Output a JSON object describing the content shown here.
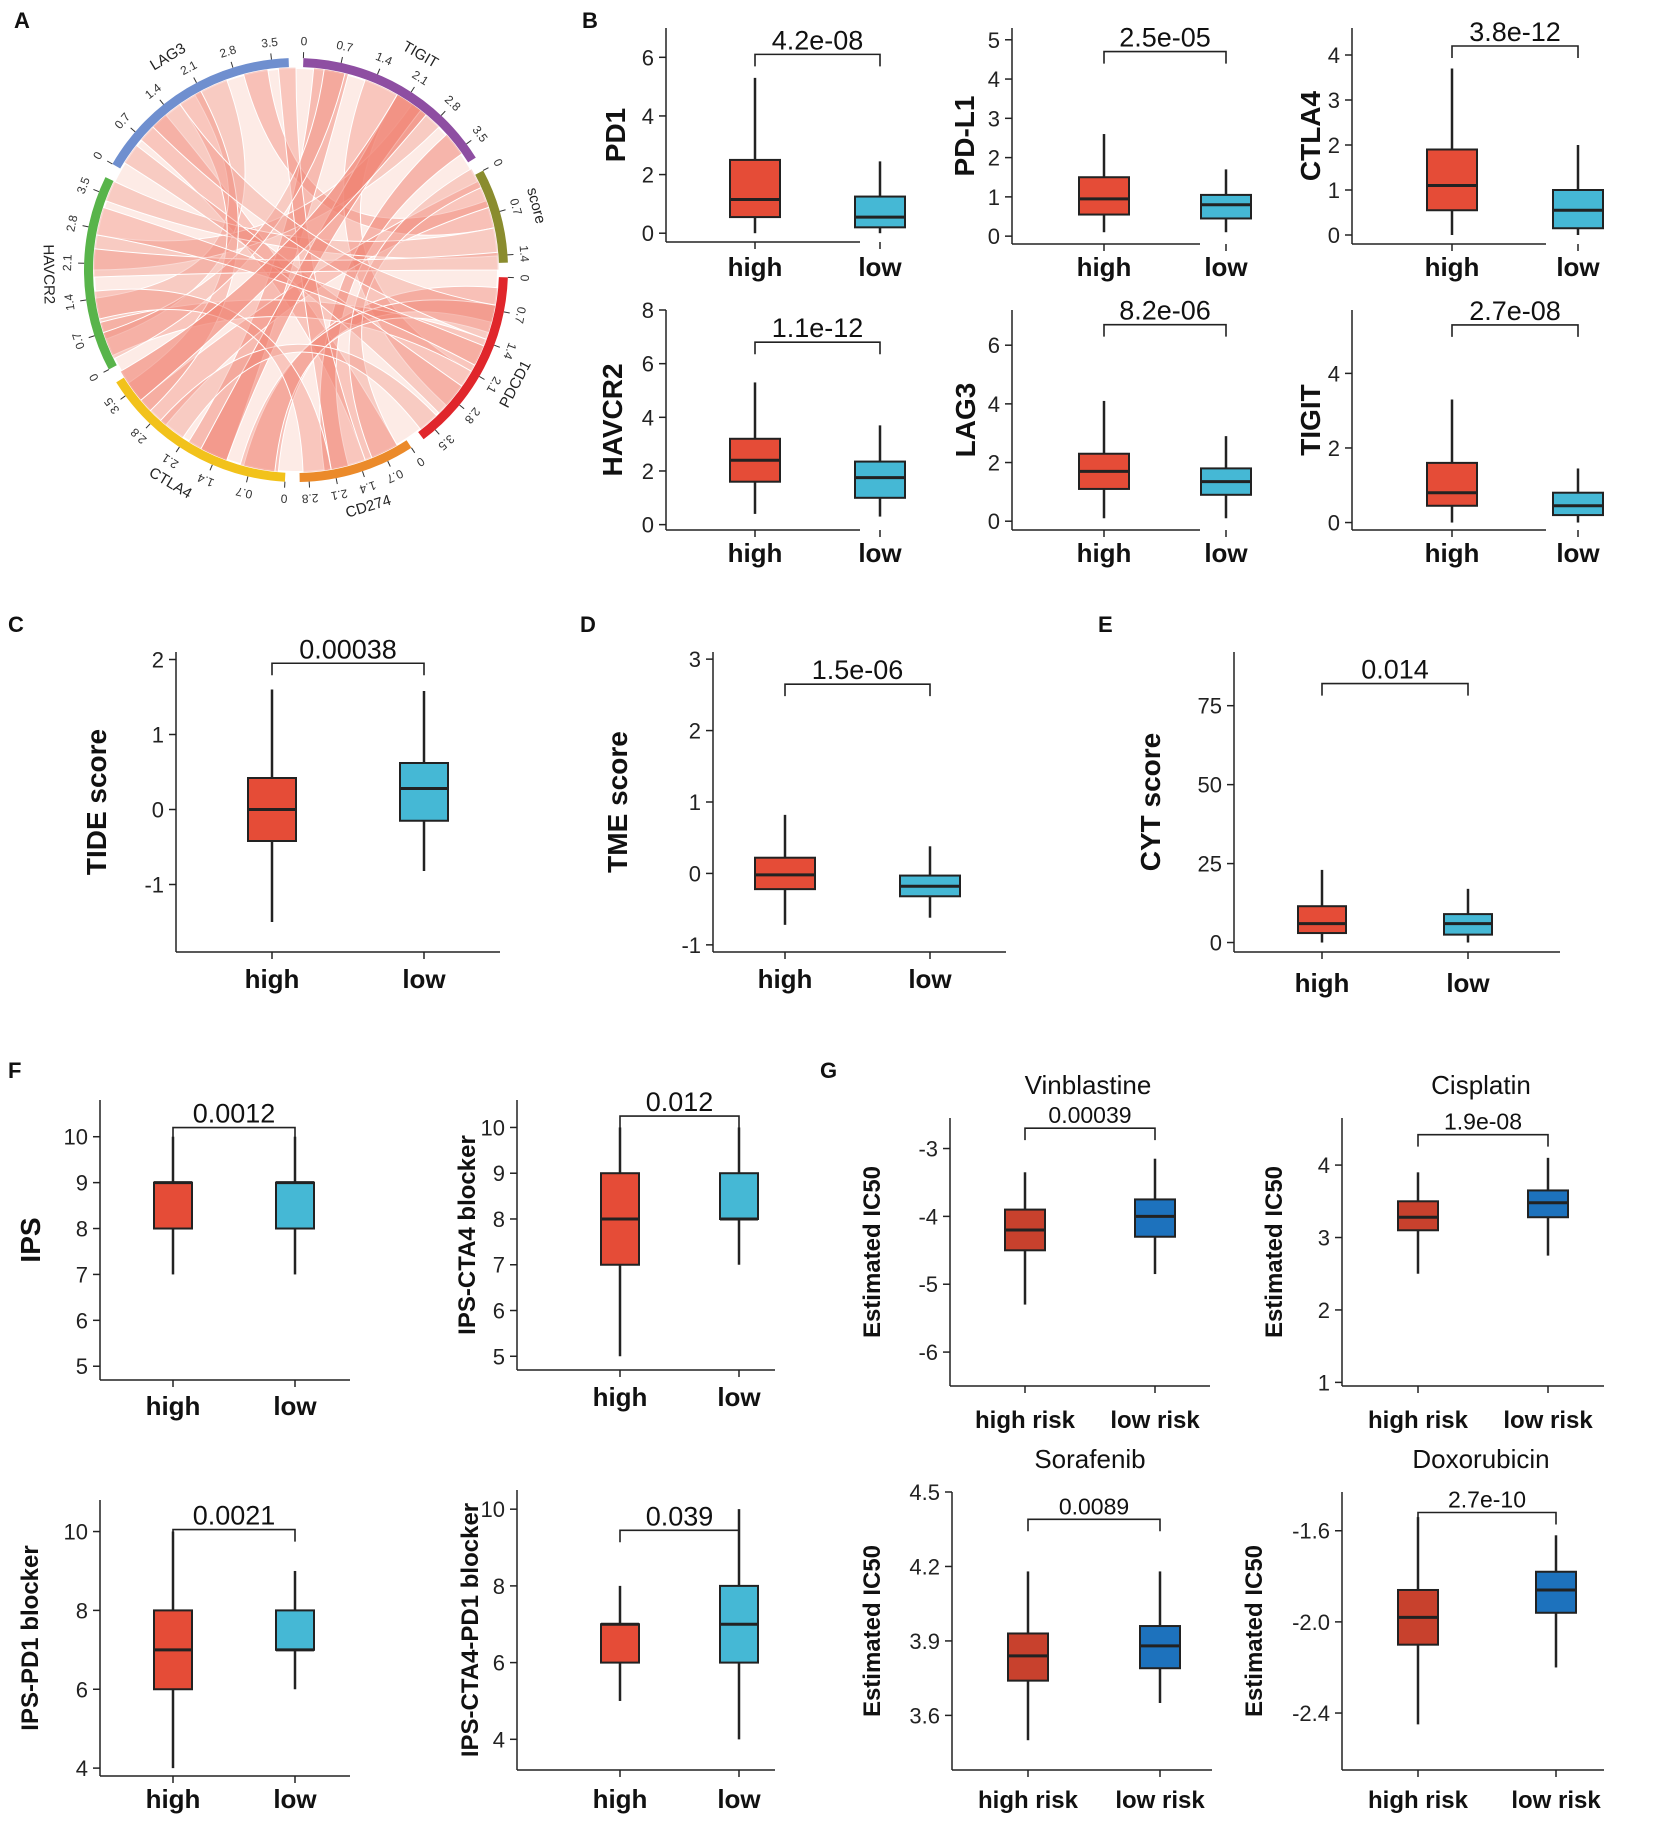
{
  "colors": {
    "high": "#e54c37",
    "low": "#45b8d5",
    "high_risk": "#c8412d",
    "low_risk": "#1d72bd",
    "chord": "#f08070"
  },
  "panel_labels": [
    "A",
    "B",
    "C",
    "D",
    "E",
    "F",
    "G"
  ],
  "chart_data": [
    {
      "panel": "A",
      "type": "chord",
      "sectors": [
        {
          "name": "LAG3",
          "color": "#6f8fcf",
          "ticks": [
            "0",
            "0.7",
            "1.4",
            "2.1",
            "2.8",
            "3.5"
          ]
        },
        {
          "name": "TIGIT",
          "color": "#8e4ea2",
          "ticks": [
            "0",
            "0.7",
            "1.4",
            "2.1",
            "2.8",
            "3.5"
          ]
        },
        {
          "name": "score",
          "color": "#8a8c2e",
          "ticks": [
            "0",
            "0.7",
            "1.4"
          ]
        },
        {
          "name": "PDCD1",
          "color": "#e0262b",
          "ticks": [
            "0",
            "0.7",
            "1.4",
            "2.1",
            "2.8",
            "3.5"
          ]
        },
        {
          "name": "CD274",
          "color": "#eb8a2a",
          "ticks": [
            "0",
            "0.7",
            "1.4",
            "2.1",
            "2.8"
          ]
        },
        {
          "name": "CTLA4",
          "color": "#f2c21b",
          "ticks": [
            "0",
            "0.7",
            "1.4",
            "2.1",
            "2.8",
            "3.5"
          ]
        },
        {
          "name": "HAVCR2",
          "color": "#58b44a",
          "ticks": [
            "0",
            "0.7",
            "1.4",
            "2.1",
            "2.8",
            "3.5"
          ]
        }
      ]
    },
    {
      "panel": "B",
      "type": "box",
      "ylabel": "PD1",
      "pvalue": "4.2e-08",
      "categories": [
        "high",
        "low"
      ],
      "ylim": [
        -0.3,
        7
      ],
      "yticks": [
        "0",
        "2",
        "4",
        "6"
      ],
      "boxes": [
        {
          "min": 0,
          "q1": 0.55,
          "median": 1.15,
          "q3": 2.5,
          "max": 5.3
        },
        {
          "min": 0,
          "q1": 0.2,
          "median": 0.55,
          "q3": 1.25,
          "max": 2.45
        }
      ],
      "bracket": 6.1
    },
    {
      "panel": "B",
      "type": "box",
      "ylabel": "PD-L1",
      "pvalue": "2.5e-05",
      "categories": [
        "high",
        "low"
      ],
      "ylim": [
        -0.2,
        5.3
      ],
      "yticks": [
        "0",
        "1",
        "2",
        "3",
        "4",
        "5"
      ],
      "boxes": [
        {
          "min": 0.1,
          "q1": 0.55,
          "median": 0.95,
          "q3": 1.5,
          "max": 2.6
        },
        {
          "min": 0.1,
          "q1": 0.45,
          "median": 0.8,
          "q3": 1.05,
          "max": 1.7
        }
      ],
      "bracket": 4.7
    },
    {
      "panel": "B",
      "type": "box",
      "ylabel": "CTLA4",
      "pvalue": "3.8e-12",
      "categories": [
        "high",
        "low"
      ],
      "ylim": [
        -0.2,
        4.6
      ],
      "yticks": [
        "0",
        "1",
        "2",
        "3",
        "4"
      ],
      "boxes": [
        {
          "min": 0,
          "q1": 0.55,
          "median": 1.1,
          "q3": 1.9,
          "max": 3.7
        },
        {
          "min": 0,
          "q1": 0.15,
          "median": 0.55,
          "q3": 1.0,
          "max": 2.0
        }
      ],
      "bracket": 4.2
    },
    {
      "panel": "B",
      "type": "box",
      "ylabel": "HAVCR2",
      "pvalue": "1.1e-12",
      "categories": [
        "high",
        "low"
      ],
      "ylim": [
        -0.2,
        8
      ],
      "yticks": [
        "0",
        "2",
        "4",
        "6",
        "8"
      ],
      "boxes": [
        {
          "min": 0.4,
          "q1": 1.6,
          "median": 2.4,
          "q3": 3.2,
          "max": 5.3
        },
        {
          "min": 0.3,
          "q1": 1.0,
          "median": 1.75,
          "q3": 2.35,
          "max": 3.7
        }
      ],
      "bracket": 6.8
    },
    {
      "panel": "B",
      "type": "box",
      "ylabel": "LAG3",
      "pvalue": "8.2e-06",
      "categories": [
        "high",
        "low"
      ],
      "ylim": [
        -0.3,
        7.2
      ],
      "yticks": [
        "0",
        "2",
        "4",
        "6"
      ],
      "boxes": [
        {
          "min": 0.1,
          "q1": 1.1,
          "median": 1.7,
          "q3": 2.3,
          "max": 4.1
        },
        {
          "min": 0.1,
          "q1": 0.9,
          "median": 1.35,
          "q3": 1.8,
          "max": 2.9
        }
      ],
      "bracket": 6.7
    },
    {
      "panel": "B",
      "type": "box",
      "ylabel": "TIGIT",
      "pvalue": "2.7e-08",
      "categories": [
        "high",
        "low"
      ],
      "ylim": [
        -0.2,
        5.7
      ],
      "yticks": [
        "0",
        "2",
        "4"
      ],
      "boxes": [
        {
          "min": 0,
          "q1": 0.45,
          "median": 0.8,
          "q3": 1.6,
          "max": 3.3
        },
        {
          "min": 0,
          "q1": 0.2,
          "median": 0.45,
          "q3": 0.8,
          "max": 1.45
        }
      ],
      "bracket": 5.3
    },
    {
      "panel": "C",
      "type": "box",
      "ylabel": "TIDE score",
      "pvalue": "0.00038",
      "categories": [
        "high",
        "low"
      ],
      "ylim": [
        -1.9,
        2.1
      ],
      "yticks": [
        "-1",
        "0",
        "1",
        "2"
      ],
      "boxes": [
        {
          "min": -1.5,
          "q1": -0.42,
          "median": 0,
          "q3": 0.42,
          "max": 1.6
        },
        {
          "min": -0.82,
          "q1": -0.15,
          "median": 0.28,
          "q3": 0.62,
          "max": 1.58
        }
      ],
      "bracket": 1.95
    },
    {
      "panel": "D",
      "type": "box",
      "ylabel": "TME score",
      "pvalue": "1.5e-06",
      "categories": [
        "high",
        "low"
      ],
      "ylim": [
        -1.1,
        3.1
      ],
      "yticks": [
        "-1",
        "0",
        "1",
        "2",
        "3"
      ],
      "boxes": [
        {
          "min": -0.72,
          "q1": -0.22,
          "median": -0.02,
          "q3": 0.22,
          "max": 0.82
        },
        {
          "min": -0.62,
          "q1": -0.32,
          "median": -0.18,
          "q3": -0.03,
          "max": 0.38
        }
      ],
      "bracket": 2.65
    },
    {
      "panel": "E",
      "type": "box",
      "ylabel": "CYT score",
      "pvalue": "0.014",
      "categories": [
        "high",
        "low"
      ],
      "ylim": [
        -3,
        92
      ],
      "yticks": [
        "0",
        "25",
        "50",
        "75"
      ],
      "boxes": [
        {
          "min": 0,
          "q1": 3,
          "median": 6,
          "q3": 11.5,
          "max": 23
        },
        {
          "min": 0,
          "q1": 2.5,
          "median": 6,
          "q3": 9,
          "max": 17
        }
      ],
      "bracket": 82
    },
    {
      "panel": "F",
      "type": "box",
      "ylabel": "IPS",
      "pvalue": "0.0012",
      "categories": [
        "high",
        "low"
      ],
      "ylim": [
        4.7,
        10.8
      ],
      "yticks": [
        "5",
        "6",
        "7",
        "8",
        "9",
        "10"
      ],
      "boxes": [
        {
          "min": 7,
          "q1": 8,
          "median": 9,
          "q3": 9,
          "max": 10
        },
        {
          "min": 7,
          "q1": 8,
          "median": 9,
          "q3": 9,
          "max": 10
        }
      ],
      "bracket": 10.2
    },
    {
      "panel": "F",
      "type": "box",
      "ylabel": "IPS-CTA4 blocker",
      "pvalue": "0.012",
      "categories": [
        "high",
        "low"
      ],
      "ylim": [
        4.7,
        10.6
      ],
      "yticks": [
        "5",
        "6",
        "7",
        "8",
        "9",
        "10"
      ],
      "boxes": [
        {
          "min": 5,
          "q1": 7,
          "median": 8,
          "q3": 9,
          "max": 10
        },
        {
          "min": 7,
          "q1": 8,
          "median": 8,
          "q3": 9,
          "max": 10
        }
      ],
      "bracket": 10.25
    },
    {
      "panel": "F",
      "type": "box",
      "ylabel": "IPS-PD1 blocker",
      "pvalue": "0.0021",
      "categories": [
        "high",
        "low"
      ],
      "ylim": [
        3.8,
        10.8
      ],
      "yticks": [
        "4",
        "6",
        "8",
        "10"
      ],
      "boxes": [
        {
          "min": 4,
          "q1": 6,
          "median": 7,
          "q3": 8,
          "max": 10
        },
        {
          "min": 6,
          "q1": 7,
          "median": 7,
          "q3": 8,
          "max": 9
        }
      ],
      "bracket": 10.05
    },
    {
      "panel": "F",
      "type": "box",
      "ylabel": "IPS-CTA4-PD1 blocker",
      "pvalue": "0.039",
      "categories": [
        "high",
        "low"
      ],
      "ylim": [
        3.2,
        10.5
      ],
      "yticks": [
        "4",
        "6",
        "8",
        "10"
      ],
      "boxes": [
        {
          "min": 5,
          "q1": 6,
          "median": 7,
          "q3": 7,
          "max": 8
        },
        {
          "min": 4,
          "q1": 6,
          "median": 7,
          "q3": 8,
          "max": 10
        }
      ],
      "bracket": 9.45
    },
    {
      "panel": "G",
      "type": "box",
      "title": "Vinblastine",
      "ylabel": "Estimated IC50",
      "pvalue": "0.00039",
      "categories": [
        "high risk",
        "low risk"
      ],
      "ylim": [
        -6.5,
        -2.55
      ],
      "yticks": [
        "-6",
        "-5",
        "-4",
        "-3"
      ],
      "boxes": [
        {
          "min": -5.3,
          "q1": -4.5,
          "median": -4.2,
          "q3": -3.9,
          "max": -3.35
        },
        {
          "min": -4.85,
          "q1": -4.3,
          "median": -4.0,
          "q3": -3.75,
          "max": -3.15
        }
      ],
      "bracket": -2.7
    },
    {
      "panel": "G",
      "type": "box",
      "title": "Cisplatin",
      "ylabel": "Estimated IC50",
      "pvalue": "1.9e-08",
      "categories": [
        "high risk",
        "low risk"
      ],
      "ylim": [
        0.95,
        4.65
      ],
      "yticks": [
        "1",
        "2",
        "3",
        "4"
      ],
      "boxes": [
        {
          "min": 2.5,
          "q1": 3.1,
          "median": 3.28,
          "q3": 3.5,
          "max": 3.9
        },
        {
          "min": 2.75,
          "q1": 3.28,
          "median": 3.48,
          "q3": 3.65,
          "max": 4.1
        }
      ],
      "bracket": 4.42
    },
    {
      "panel": "G",
      "type": "box",
      "title": "Sorafenib",
      "ylabel": "Estimated IC50",
      "pvalue": "0.0089",
      "categories": [
        "high risk",
        "low risk"
      ],
      "ylim": [
        3.38,
        4.5
      ],
      "yticks": [
        "3.6",
        "3.9",
        "4.2",
        "4.5"
      ],
      "boxes": [
        {
          "min": 3.5,
          "q1": 3.74,
          "median": 3.84,
          "q3": 3.93,
          "max": 4.18
        },
        {
          "min": 3.65,
          "q1": 3.79,
          "median": 3.88,
          "q3": 3.96,
          "max": 4.18
        }
      ],
      "bracket": 4.39
    },
    {
      "panel": "G",
      "type": "box",
      "title": "Doxorubicin",
      "ylabel": "Estimated IC50",
      "pvalue": "2.7e-10",
      "categories": [
        "high risk",
        "low risk"
      ],
      "ylim": [
        -2.65,
        -1.43
      ],
      "yticks": [
        "-2.4",
        "-2.0",
        "-1.6"
      ],
      "boxes": [
        {
          "min": -2.45,
          "q1": -2.1,
          "median": -1.98,
          "q3": -1.86,
          "max": -1.54
        },
        {
          "min": -2.2,
          "q1": -1.96,
          "median": -1.86,
          "q3": -1.78,
          "max": -1.62
        }
      ],
      "bracket": -1.52
    }
  ]
}
